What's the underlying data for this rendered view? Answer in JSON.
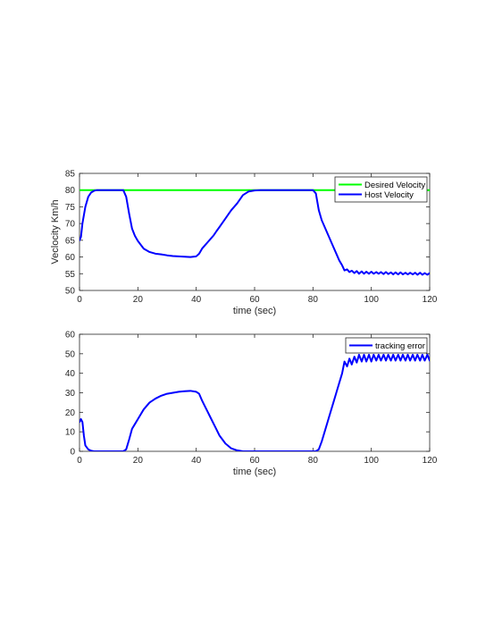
{
  "chart_data": [
    {
      "type": "line",
      "xlabel": "time (sec)",
      "ylabel": "Veclocity Km/h",
      "xlim": [
        0,
        120
      ],
      "ylim": [
        50,
        85
      ],
      "xticks": [
        0,
        20,
        40,
        60,
        80,
        100,
        120
      ],
      "yticks": [
        50,
        55,
        60,
        65,
        70,
        75,
        80,
        85
      ],
      "grid": false,
      "legend_position": "top-right",
      "series": [
        {
          "name": "Desired Velocity",
          "color": "#00ff00",
          "x": [
            0,
            120
          ],
          "y": [
            80,
            80
          ]
        },
        {
          "name": "Host Velocity",
          "color": "#0000ff",
          "x": [
            0,
            0.5,
            1,
            2,
            3,
            4,
            5,
            6,
            8,
            10,
            12,
            14,
            15,
            16,
            17,
            18,
            19,
            20,
            22,
            24,
            26,
            28,
            30,
            32,
            34,
            36,
            38,
            40,
            41,
            42,
            43,
            44,
            45,
            46,
            47,
            48,
            50,
            52,
            54,
            56,
            58,
            60,
            62,
            64,
            66,
            68,
            70,
            72,
            74,
            76,
            78,
            80,
            81,
            82,
            83,
            84,
            85,
            86,
            87,
            88,
            89,
            90,
            90.8,
            91.7,
            92.5,
            93.3,
            94.2,
            95,
            95.8,
            96.7,
            97.5,
            98.3,
            99.2,
            100,
            100.8,
            101.7,
            102.5,
            103.3,
            104.2,
            105,
            105.8,
            106.7,
            107.5,
            108.3,
            109.2,
            110,
            110.8,
            111.7,
            112.5,
            113.3,
            114.2,
            115,
            115.8,
            116.7,
            117.5,
            118.3,
            119.2,
            120
          ],
          "y": [
            65,
            66,
            70,
            75,
            78,
            79.3,
            79.8,
            80,
            80,
            80,
            80,
            80,
            80,
            78,
            73,
            68.5,
            66.3,
            64.8,
            62.5,
            61.5,
            61,
            60.8,
            60.5,
            60.3,
            60.2,
            60.1,
            60,
            60.2,
            61,
            62.5,
            63.5,
            64.5,
            65.5,
            66.5,
            67.8,
            69,
            71.5,
            74,
            76,
            78.5,
            79.6,
            79.9,
            80,
            80,
            80,
            80,
            80,
            80,
            80,
            80,
            80,
            80,
            79,
            74,
            71,
            69,
            67,
            65,
            63,
            61,
            59,
            57.5,
            56,
            56.3,
            55.5,
            55.9,
            55.2,
            55.8,
            55,
            55.7,
            55,
            55.6,
            55,
            55.6,
            55,
            55.5,
            55,
            55.5,
            54.9,
            55.5,
            54.9,
            55.4,
            54.8,
            55.4,
            54.8,
            55.4,
            54.8,
            55.3,
            54.8,
            55.3,
            54.8,
            55.3,
            54.7,
            55.3,
            54.7,
            55.2,
            54.7,
            55.2
          ]
        }
      ]
    },
    {
      "type": "line",
      "xlabel": "time (sec)",
      "ylabel": "",
      "xlim": [
        0,
        120
      ],
      "ylim": [
        0,
        60
      ],
      "xticks": [
        0,
        20,
        40,
        60,
        80,
        100,
        120
      ],
      "yticks": [
        0,
        10,
        20,
        30,
        40,
        50,
        60
      ],
      "grid": false,
      "legend_position": "top-right",
      "series": [
        {
          "name": "tracking error",
          "color": "#0000ff",
          "x": [
            0,
            0.5,
            1,
            1.5,
            2,
            3,
            4,
            5,
            6,
            8,
            10,
            12,
            14,
            15,
            16,
            17,
            18,
            19,
            20,
            22,
            24,
            26,
            28,
            30,
            32,
            34,
            36,
            38,
            40,
            41,
            42,
            43,
            44,
            45,
            46,
            47,
            48,
            50,
            52,
            54,
            56,
            58,
            60,
            62,
            64,
            66,
            68,
            70,
            72,
            74,
            76,
            78,
            80,
            81,
            82,
            83,
            84,
            85,
            86,
            87,
            88,
            89,
            90,
            90.8,
            91.7,
            92.5,
            93.3,
            94.2,
            95,
            95.8,
            96.7,
            97.5,
            98.3,
            99.2,
            100,
            100.8,
            101.7,
            102.5,
            103.3,
            104.2,
            105,
            105.8,
            106.7,
            107.5,
            108.3,
            109.2,
            110,
            110.8,
            111.7,
            112.5,
            113.3,
            114.2,
            115,
            115.8,
            116.7,
            117.5,
            118.3,
            119.2,
            120
          ],
          "y": [
            15,
            16.5,
            15,
            8,
            3,
            1,
            0.3,
            0,
            0,
            0,
            0,
            0,
            0,
            0,
            1,
            6,
            11.5,
            14,
            16.5,
            21.5,
            25,
            27,
            28.5,
            29.5,
            30,
            30.5,
            30.8,
            31,
            30.5,
            29.5,
            26,
            23,
            20,
            17,
            14,
            11,
            8,
            4,
            1.5,
            0.5,
            0,
            0,
            0,
            0,
            0,
            0,
            0,
            0,
            0,
            0,
            0,
            0,
            0,
            0,
            1,
            5,
            10,
            15,
            20,
            25,
            30,
            35,
            40,
            46,
            43.5,
            47.5,
            44.5,
            48.5,
            45.5,
            49.5,
            46,
            49.5,
            46,
            49.5,
            46,
            49.5,
            46.5,
            49.5,
            46.5,
            49.5,
            46.5,
            49.5,
            46.5,
            49.5,
            46.5,
            49.5,
            46.5,
            49.5,
            46.5,
            49.5,
            46.5,
            49.5,
            46.5,
            49.5,
            46.5,
            49.5,
            46.5,
            49.5,
            46.5
          ]
        }
      ]
    }
  ]
}
